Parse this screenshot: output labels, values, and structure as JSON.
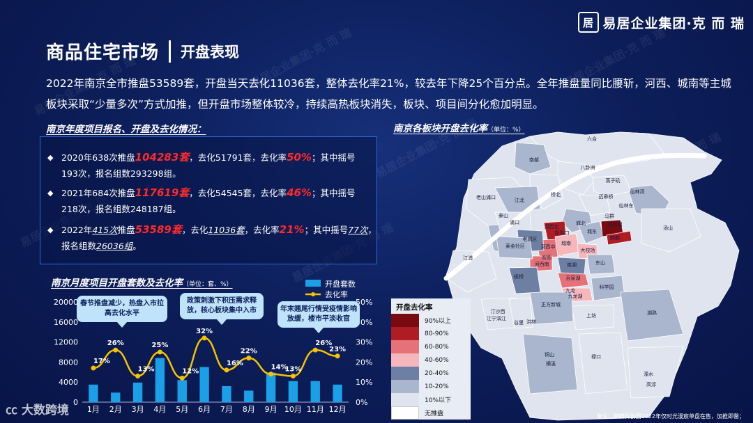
{
  "brand": {
    "logo_char": "居",
    "name": "易居企业集团·克 而 瑞"
  },
  "header": {
    "title": "商品住宅市场",
    "subtitle": "开盘表现"
  },
  "summary": "2022年南京全市推盘53589套，开盘当天去化11036套，整体去化率21%，较去年下降25个百分点。全年推盘量同比腰斩，河西、城南等主城板块采取“少量多次”方式加推，但开盘市场整体较冷，持续高热板块消失，板块、项目间分化愈加明显。",
  "annual": {
    "title": "南京年度项目报名、开盘及去化情况：",
    "bullets": [
      {
        "a": "2020年638次推盘",
        "b": "104283套",
        "c": "，去化51791套，去化率",
        "d": "50%",
        "e": "；其中摇号",
        "f": "193次，报名组数293298组。"
      },
      {
        "a": "2021年684次推盘",
        "b": "117619套",
        "c": "，去化54545套，去化率",
        "d": "46%",
        "e": "；其中摇号",
        "f": "218次，报名组数248187组。"
      },
      {
        "a1": "2022年",
        "a2": "415次",
        "a3": "推盘",
        "b": "53589套",
        "c1": "，去化",
        "c2": "11036套",
        "c3": "，去化率",
        "d": "21%",
        "e1": "；其中摇号",
        "e2": "77次",
        "e3": "，",
        "f1": "报名组数",
        "f2": "26036组",
        "f3": "。"
      }
    ]
  },
  "map": {
    "title": "南京各板块开盘去化率",
    "unit": "（单位：%）",
    "legend_title": "开盘去化率",
    "legend": [
      {
        "label": "90%以上",
        "color": "#7a0a12"
      },
      {
        "label": "80-90%",
        "color": "#b01c24"
      },
      {
        "label": "60-80%",
        "color": "#e57278"
      },
      {
        "label": "40-60%",
        "color": "#f5b7bc"
      },
      {
        "label": "20-40%",
        "color": "#6d7fa2"
      },
      {
        "label": "10-20%",
        "color": "#a9b6cd"
      },
      {
        "label": "10%以下",
        "color": "#dfe4ee"
      },
      {
        "label": "无推盘",
        "color": "#ffffff"
      }
    ],
    "labels": [
      "六合",
      "八卦洲",
      "南部",
      "桥北",
      "老山浦口",
      "仙林湾",
      "燕子矶",
      "迈皋桥",
      "仙林东",
      "马群",
      "浦口",
      "城北",
      "城东",
      "河西北",
      "河西中",
      "城南",
      "河西南",
      "仙林湖",
      "麒麟",
      "汤山",
      "江北",
      "泰山",
      "江浦",
      "老城区",
      "莱金社区",
      "大校场",
      "南湖",
      "东山",
      "百家湖",
      "九龙湖",
      "科学园",
      "上坊",
      "汀沙西",
      "正方新城",
      "禄口",
      "湖熟",
      "洪林",
      "溧水",
      "高淳",
      "铜山",
      "谷里",
      "江宁滨江",
      "横溪",
      "九龙",
      "板桥",
      "新街口",
      "宏图"
    ]
  },
  "chart_data": {
    "type": "bar",
    "title": "南京月度项目开盘套数及去化率",
    "unit": "（单位：套、%）",
    "categories": [
      "1月",
      "2月",
      "3月",
      "4月",
      "5月",
      "6月",
      "7月",
      "8月",
      "9月",
      "10月",
      "11月",
      "12月"
    ],
    "series": [
      {
        "name": "开盘套数",
        "type": "bar",
        "axis": "left",
        "color": "#1aa0e6",
        "values": [
          3500,
          1900,
          3900,
          8800,
          4400,
          7000,
          3200,
          2300,
          5900,
          4200,
          4200,
          3500
        ]
      },
      {
        "name": "去化率",
        "type": "line",
        "axis": "right",
        "color": "#f5c400",
        "values": [
          17,
          26,
          13,
          25,
          12,
          32,
          16,
          22,
          14,
          13,
          26,
          23
        ],
        "labels": [
          "17%",
          "26%",
          "13%",
          "25%",
          "12%",
          "32%",
          "16%",
          "22%",
          "14%",
          "13%",
          "26%",
          "23%"
        ]
      }
    ],
    "y_left": {
      "min": 0,
      "max": 20000,
      "ticks": [
        "0",
        "4000",
        "8000",
        "12000",
        "16000",
        "20000"
      ]
    },
    "y_right": {
      "min": 0,
      "max": 50,
      "ticks": [
        "0%",
        "10%",
        "20%",
        "30%",
        "40%",
        "50%"
      ]
    },
    "legend_position": "top-right",
    "annotations": [
      "春节推盘减少，热盘入市拉高去化水平",
      "政策刺激下积压需求释放，核心板块集中入市",
      "年末翘尾行情受疫情影响放缓，楼市平淡收官"
    ]
  },
  "note": "备注：麒麟科创园2022年仅时光漫宸单盘在售，加推即罄；",
  "footer": "大数跨境"
}
